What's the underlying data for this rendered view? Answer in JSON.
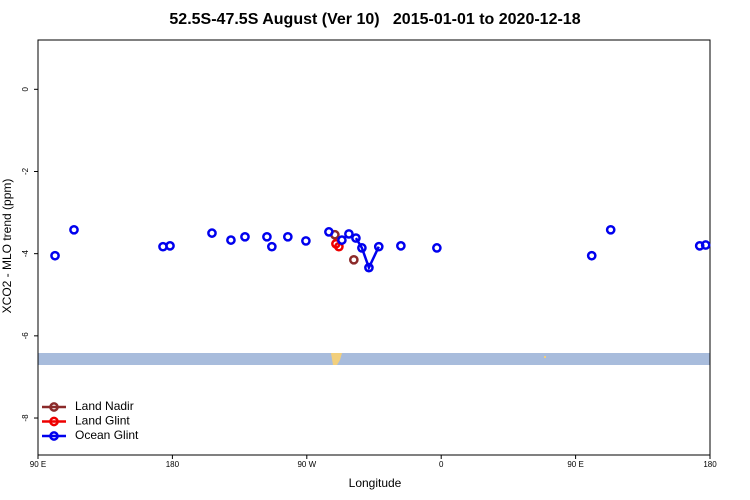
{
  "chart_data": {
    "type": "scatter",
    "title": "52.5S-47.5S August (Ver 10)   2015-01-01 to 2020-12-18",
    "x_label": "Longitude",
    "y_label": "XCO2 - MLO trend (ppm)",
    "xlim": [
      90,
      540
    ],
    "ylim": [
      -8.9,
      1.2
    ],
    "xticks": [
      {
        "value": 90,
        "label": "90 E"
      },
      180,
      {
        "value": 270,
        "label": "90 W"
      },
      {
        "value": 360,
        "label": "0"
      },
      {
        "value": 450,
        "label": "90 E"
      },
      {
        "value": 540,
        "label": "180"
      }
    ],
    "yticks": [
      0,
      -2,
      -4,
      -6,
      -8
    ],
    "legend": "bottom-left",
    "series": [
      {
        "name": "Land Nadir",
        "color": "#8b2a2a",
        "x": [
          288.8,
          null,
          301.5
        ],
        "values": [
          -3.54,
          null,
          -4.15
        ]
      },
      {
        "name": "Land Glint",
        "color": "#ee0000",
        "x": [
          289.5,
          null,
          291.5
        ],
        "values": [
          -3.76,
          null,
          -3.83
        ]
      },
      {
        "name": "Ocean Glint",
        "color": "#0000ee",
        "x": [
          101.4,
          null,
          114.1,
          null,
          173.7,
          null,
          178.4,
          null,
          206.5,
          null,
          219.2,
          null,
          228.6,
          null,
          243.3,
          null,
          246.6,
          null,
          257.3,
          null,
          269.4,
          null,
          284.8,
          null,
          293.5,
          null,
          298.2,
          null,
          302.9,
          306.9,
          311.6,
          318.2,
          null,
          333.0,
          null,
          357.1,
          null,
          460.8,
          null,
          473.5,
          null,
          533.1,
          null,
          537.1
        ],
        "values": [
          -4.05,
          null,
          -3.42,
          null,
          -3.83,
          null,
          -3.81,
          null,
          -3.5,
          null,
          -3.67,
          null,
          -3.59,
          null,
          -3.59,
          null,
          -3.83,
          null,
          -3.59,
          null,
          -3.69,
          null,
          -3.47,
          null,
          -3.67,
          null,
          -3.52,
          null,
          -3.62,
          -3.86,
          -4.34,
          -3.83,
          null,
          -3.81,
          null,
          -3.86,
          null,
          -4.05,
          null,
          -3.42,
          null,
          -3.81,
          null,
          -3.79
        ]
      }
    ]
  }
}
